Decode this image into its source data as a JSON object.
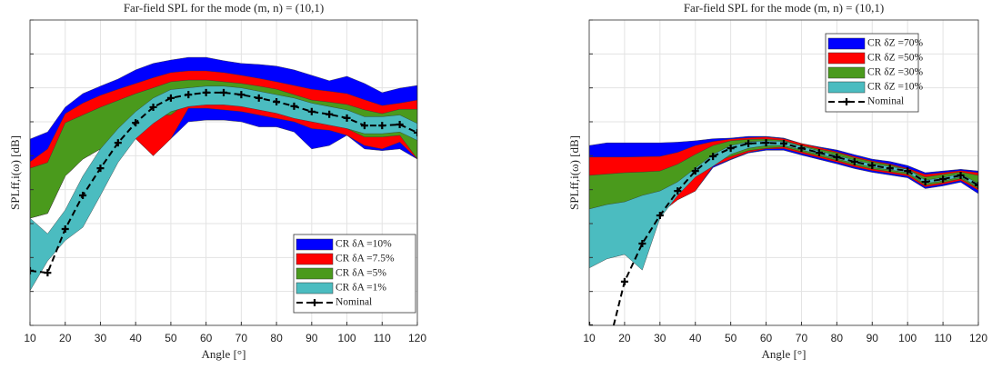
{
  "chart_data": [
    {
      "type": "band",
      "title": "Far-field SPL for the mode (m, n) = (10,1)",
      "x_label": "Angle [°]",
      "y_label": "SPLff,i(ω) [dB]",
      "x": [
        10,
        15,
        20,
        25,
        30,
        35,
        40,
        45,
        50,
        55,
        60,
        65,
        70,
        75,
        80,
        85,
        90,
        95,
        100,
        105,
        110,
        115,
        120
      ],
      "xlim": [
        10,
        120
      ],
      "xticks": [
        10,
        20,
        30,
        40,
        50,
        60,
        70,
        80,
        90,
        100,
        110,
        120
      ],
      "ylim": [
        0,
        90
      ],
      "yticks": [
        0,
        10,
        20,
        30,
        40,
        50,
        60,
        70,
        80,
        90
      ],
      "grid": true,
      "legend": "lower right",
      "series": [
        {
          "name": "CR δA =10%",
          "color": "#0000ff",
          "upper": [
            54.9,
            57,
            64.3,
            68.3,
            70.5,
            72.6,
            75.3,
            77.2,
            78.2,
            79,
            79,
            78,
            77.2,
            76.9,
            76.4,
            75.3,
            73.7,
            72.1,
            73.4,
            71.3,
            68.6,
            69.9,
            70.7
          ],
          "lower": [
            31.6,
            33,
            44,
            49,
            52,
            55,
            55,
            50,
            55,
            60,
            60.5,
            60.5,
            60,
            58.5,
            58.5,
            57,
            52,
            53,
            56,
            52,
            51.5,
            52,
            49
          ]
        },
        {
          "name": "CR δA =7.5%",
          "color": "#ff0000",
          "upper": [
            48.2,
            52,
            62.4,
            65.5,
            67.8,
            69.6,
            71.3,
            73,
            74.5,
            75,
            75,
            74.5,
            73.7,
            72.8,
            71.8,
            70.7,
            69.6,
            69,
            68.3,
            66.5,
            64.8,
            65.5,
            66.4
          ],
          "lower": [
            31.6,
            33,
            44,
            49,
            52,
            55,
            55,
            50,
            55,
            64,
            64,
            63.5,
            63,
            62,
            61,
            60,
            58,
            57.5,
            56,
            53,
            52,
            54,
            49
          ]
        },
        {
          "name": "CR δA =5%",
          "color": "#4a9a1c",
          "upper": [
            46.3,
            48,
            59.7,
            62,
            64.3,
            66.3,
            68.3,
            70,
            71.8,
            72.3,
            72.3,
            71.8,
            71.3,
            70.5,
            69.6,
            68,
            66.4,
            65.8,
            65.1,
            63.5,
            62.4,
            63.7,
            63.7
          ],
          "lower": [
            31.6,
            33,
            44,
            49,
            52,
            55,
            58,
            62,
            62,
            66,
            66,
            65.5,
            65,
            64,
            63,
            62,
            60,
            59.5,
            58,
            55.5,
            55.5,
            56,
            49.1
          ]
        },
        {
          "name": "CR δA =1%",
          "color": "#4bbcc0",
          "upper": [
            31.6,
            27,
            34,
            44,
            52,
            58,
            63,
            67,
            69.5,
            70,
            70.5,
            70.5,
            70,
            69,
            68,
            67,
            65.5,
            64.5,
            63.5,
            61.5,
            61.5,
            62,
            59.5
          ],
          "lower": [
            10.2,
            19,
            25,
            28.9,
            38.3,
            48,
            55,
            59.5,
            63,
            64.5,
            65,
            65,
            64.5,
            63.5,
            62.5,
            61,
            60,
            59,
            58,
            56.5,
            56.5,
            57,
            54.5
          ]
        },
        {
          "name": "Nominal",
          "color": "#000000",
          "values": [
            16.1,
            15.5,
            28.4,
            38.3,
            46.3,
            53.8,
            59.7,
            64.3,
            67,
            68,
            68.6,
            68.6,
            68,
            67,
            65.9,
            64.6,
            63,
            62.2,
            61.1,
            58.9,
            58.9,
            59.2,
            56.8
          ]
        }
      ]
    },
    {
      "type": "band",
      "title": "Far-field SPL for the mode (m, n) = (10,1)",
      "x_label": "Angle [°]",
      "y_label": "SPLff,i(ω) [dB]",
      "x": [
        10,
        15,
        20,
        25,
        30,
        35,
        40,
        45,
        50,
        55,
        60,
        65,
        70,
        75,
        80,
        85,
        90,
        95,
        100,
        105,
        110,
        115,
        120
      ],
      "xlim": [
        10,
        120
      ],
      "xticks": [
        10,
        20,
        30,
        40,
        50,
        60,
        70,
        80,
        90,
        100,
        110,
        120
      ],
      "ylim": [
        0,
        90
      ],
      "yticks": [
        0,
        10,
        20,
        30,
        40,
        50,
        60,
        70,
        80,
        90
      ],
      "grid": true,
      "legend": "upper right",
      "series": [
        {
          "name": "CR δZ =70%",
          "color": "#0000ff",
          "upper": [
            53,
            53.8,
            53.8,
            53.8,
            53.8,
            54,
            54.4,
            55,
            55.2,
            55.7,
            55.7,
            55.2,
            53.6,
            52.6,
            51.7,
            50.3,
            49,
            48.3,
            47.1,
            45,
            45.5,
            46,
            45.5
          ],
          "lower": [
            28.9,
            28.9,
            28.9,
            30.5,
            33,
            37,
            39.6,
            46.5,
            48.8,
            50.8,
            51.6,
            51.6,
            50.2,
            48.9,
            47.6,
            46.2,
            45.1,
            44.3,
            43.5,
            40.3,
            41.1,
            42.2,
            38.8
          ]
        },
        {
          "name": "CR δZ =50%",
          "color": "#ff0000",
          "upper": [
            49.6,
            49.6,
            49.6,
            49.7,
            49.8,
            51,
            53,
            54.2,
            54.9,
            55.3,
            55.5,
            55,
            53.6,
            52.4,
            51.2,
            49.8,
            48.5,
            47.6,
            46.3,
            44.5,
            45,
            45.6,
            45
          ],
          "lower": [
            28.9,
            28.9,
            28.9,
            30.5,
            33,
            37,
            39.6,
            46.9,
            49,
            51,
            52,
            52.1,
            50.7,
            49.4,
            48.1,
            46.7,
            45.6,
            44.8,
            44,
            40.8,
            41.6,
            42.7,
            39.8
          ]
        },
        {
          "name": "CR δZ =30%",
          "color": "#4a9a1c",
          "upper": [
            44.2,
            44.6,
            45,
            45.2,
            45.5,
            47.5,
            50.4,
            53,
            54.4,
            54.8,
            54.9,
            54.5,
            53,
            51.9,
            50.9,
            49.4,
            48.2,
            47.3,
            46,
            43.7,
            44.5,
            45.2,
            44.2
          ],
          "lower": [
            28.9,
            28.9,
            28.9,
            30.5,
            33,
            38.5,
            45,
            48,
            49.8,
            51.5,
            52.2,
            52.6,
            51.2,
            49.9,
            48.6,
            47.2,
            46.1,
            45.3,
            44.5,
            41.3,
            42.1,
            43.2,
            40.3
          ]
        },
        {
          "name": "CR δZ =10%",
          "color": "#4bbcc0",
          "upper": [
            34.3,
            35.6,
            36.4,
            38.3,
            39.6,
            42.3,
            46.3,
            50.4,
            53,
            54.1,
            54.4,
            54.2,
            52.8,
            51.4,
            50.1,
            48.7,
            47.6,
            46.8,
            46,
            42.8,
            43.6,
            44.7,
            41.8
          ],
          "lower": [
            16.9,
            19.6,
            20.9,
            16.3,
            31.6,
            38.3,
            43.7,
            46.9,
            50.4,
            52.2,
            53,
            53,
            51.7,
            50.4,
            49.1,
            47.7,
            46.6,
            45.8,
            45,
            41.8,
            42.6,
            43.7,
            40.8
          ]
        },
        {
          "name": "Nominal",
          "color": "#000000",
          "values": [
            0,
            -8,
            12.9,
            24.1,
            32.4,
            39.6,
            45.5,
            49.8,
            52.2,
            53.6,
            53.8,
            53.6,
            52.2,
            50.9,
            49.6,
            48.2,
            47.1,
            46.3,
            45.5,
            42.3,
            43.1,
            44.2,
            41.3
          ]
        }
      ]
    }
  ]
}
